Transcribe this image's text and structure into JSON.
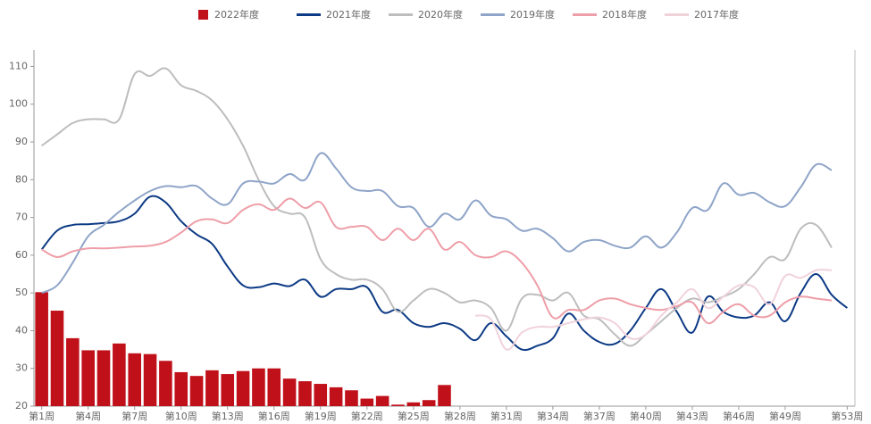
{
  "chart_data": {
    "type": "bar-line",
    "categories": [
      "第1周",
      null,
      null,
      "第4周",
      null,
      null,
      "第7周",
      null,
      null,
      "第10周",
      null,
      null,
      "第13周",
      null,
      null,
      "第16周",
      null,
      null,
      "第19周",
      null,
      null,
      "第22周",
      null,
      null,
      "第25周",
      null,
      null,
      "第28周",
      null,
      null,
      "第31周",
      null,
      null,
      "第34周",
      null,
      null,
      "第37周",
      null,
      null,
      "第40周",
      null,
      null,
      "第43周",
      null,
      null,
      "第46周",
      null,
      null,
      "第49周",
      null,
      null,
      null,
      "第53周"
    ],
    "series": [
      {
        "name": "2022年度",
        "type": "bar",
        "color": "#c0101a",
        "values": [
          50.2,
          45.3,
          38,
          34.8,
          34.8,
          36.6,
          34,
          33.8,
          32,
          29,
          28,
          29.5,
          28.5,
          29.3,
          30,
          30,
          27.3,
          26.6,
          25.9,
          25,
          24.2,
          22,
          22.7,
          20.4,
          21,
          21.6,
          25.6,
          null,
          null,
          null,
          null,
          null,
          null,
          null,
          null,
          null,
          null,
          null,
          null,
          null,
          null,
          null,
          null,
          null,
          null,
          null,
          null,
          null,
          null,
          null,
          null,
          null,
          null
        ]
      },
      {
        "name": "2021年度",
        "type": "line",
        "color": "#0d3a85",
        "values": [
          61.5,
          66.5,
          68,
          68.2,
          68.5,
          69,
          71,
          75.5,
          74,
          69,
          65.5,
          63,
          57,
          52,
          51.5,
          52.5,
          51.8,
          53.5,
          49,
          51,
          51,
          51.5,
          45,
          45.5,
          42,
          41,
          42,
          40.5,
          37.5,
          42,
          38.5,
          35,
          36,
          38,
          44.5,
          40,
          37,
          36.5,
          40,
          46,
          51,
          45,
          39.5,
          49,
          45,
          43.5,
          44,
          47.5,
          42.5,
          50,
          55,
          49.5,
          46
        ]
      },
      {
        "name": "2020年度",
        "type": "line",
        "color": "#bdbdbd",
        "values": [
          89,
          92,
          95,
          96,
          96,
          96,
          108,
          107.5,
          109.5,
          105,
          103.5,
          101,
          96,
          89,
          80,
          73,
          71,
          70,
          59,
          55,
          53.5,
          53.5,
          51,
          45,
          48,
          51,
          50,
          47.5,
          48,
          46,
          40,
          48.5,
          49.5,
          48,
          50,
          44,
          43,
          39,
          36,
          39,
          42.5,
          46,
          48.5,
          47.5,
          49,
          51,
          55,
          59.5,
          59,
          67,
          68,
          62,
          null
        ]
      },
      {
        "name": "2019年度",
        "type": "line",
        "color": "#8ea4c8",
        "values": [
          50,
          52,
          58,
          65,
          68,
          71.5,
          74.5,
          77,
          78.3,
          78,
          78.3,
          75,
          73.5,
          79,
          79.5,
          79,
          81.5,
          80,
          87,
          83,
          78,
          77,
          77,
          73,
          72.5,
          67.5,
          71,
          69.5,
          74.5,
          70.5,
          69.5,
          66.5,
          67,
          64.5,
          61,
          63.5,
          64,
          62.5,
          62,
          65,
          62,
          66,
          72.5,
          72,
          79,
          76,
          76.5,
          74,
          73,
          78,
          84,
          82.5,
          null
        ]
      },
      {
        "name": "2018年度",
        "type": "line",
        "color": "#ee9ea8",
        "values": [
          61.5,
          59.5,
          61,
          61.8,
          61.8,
          62,
          62.3,
          62.5,
          63.5,
          66,
          69,
          69.5,
          68.5,
          72,
          73.5,
          72,
          75,
          72.5,
          74,
          67.5,
          67.5,
          67.5,
          64,
          67,
          64,
          67,
          61.5,
          63.5,
          60,
          59.5,
          61,
          58,
          52,
          43.5,
          45.5,
          45.5,
          48,
          48.5,
          47,
          46,
          45.5,
          46.5,
          47.5,
          42,
          45,
          47,
          44,
          44,
          47.5,
          49,
          48.5,
          48,
          null
        ]
      },
      {
        "name": "2017年度",
        "type": "line",
        "color": "#f0d2da",
        "values": [
          null,
          null,
          null,
          null,
          null,
          null,
          null,
          null,
          null,
          null,
          null,
          null,
          null,
          null,
          null,
          null,
          null,
          null,
          null,
          null,
          null,
          null,
          null,
          null,
          null,
          null,
          null,
          null,
          44,
          43,
          35,
          39.5,
          41,
          41,
          42,
          43,
          43.5,
          42,
          38,
          39,
          44,
          47.5,
          51,
          46,
          49,
          52,
          51.5,
          47,
          54.5,
          54,
          56,
          56,
          null
        ]
      }
    ],
    "ylim": [
      20,
      112
    ],
    "yticks": [
      20,
      30,
      40,
      50,
      60,
      70,
      80,
      90,
      100,
      110
    ]
  }
}
